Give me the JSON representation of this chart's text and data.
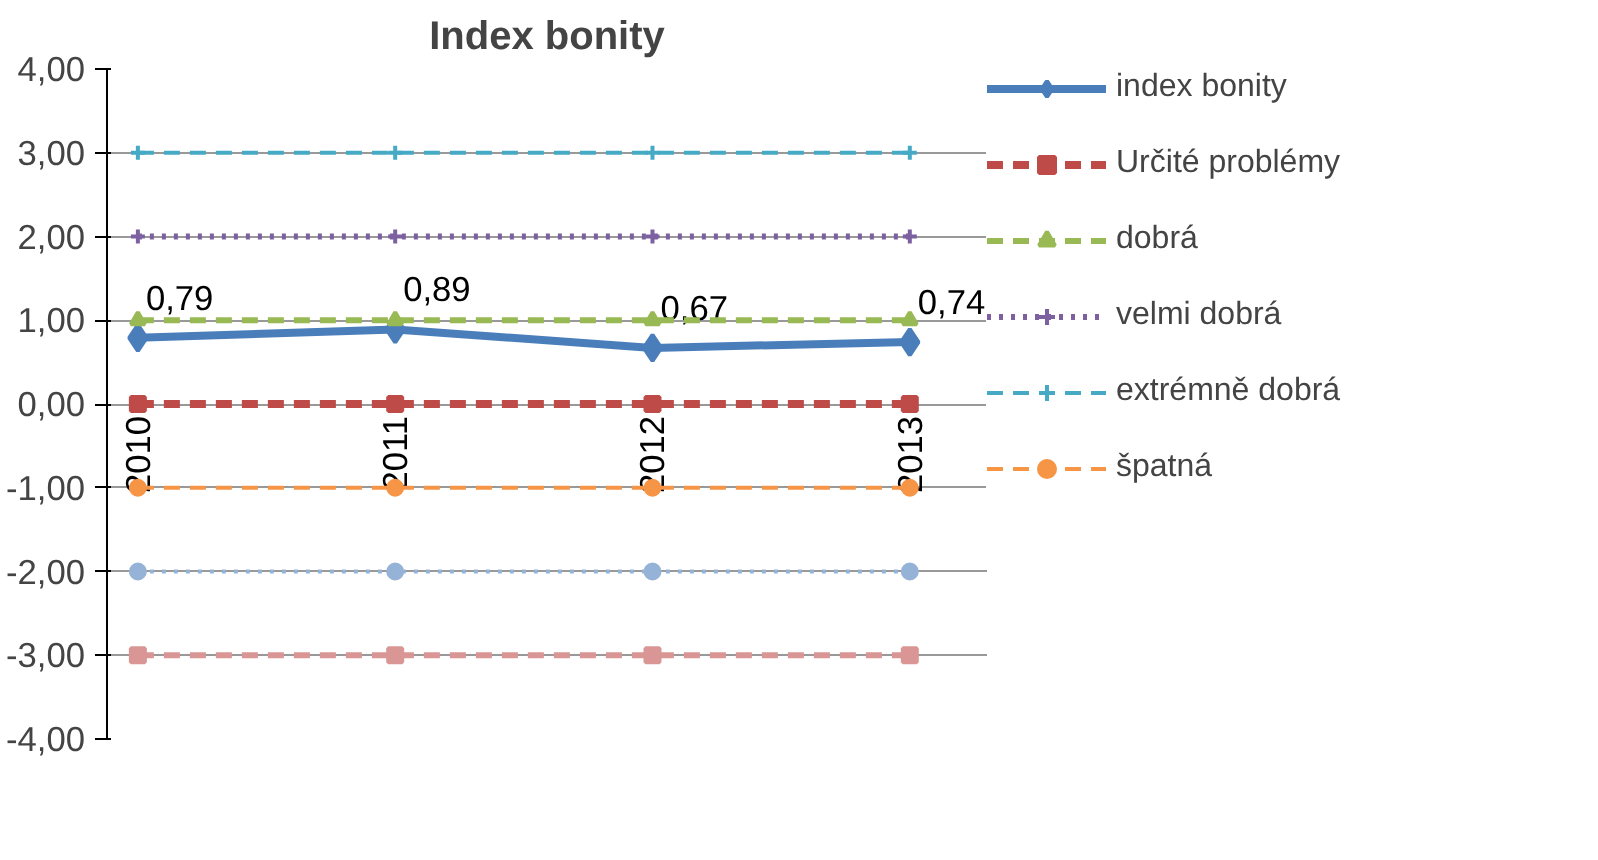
{
  "chart_data": {
    "type": "line",
    "title": "Index bonity",
    "categories": [
      "2010",
      "2011",
      "2012",
      "2013"
    ],
    "ylim": [
      -4,
      4
    ],
    "yticks": [
      {
        "value": 4,
        "label": "4,00"
      },
      {
        "value": 3,
        "label": "3,00"
      },
      {
        "value": 2,
        "label": "2,00"
      },
      {
        "value": 1,
        "label": "1,00"
      },
      {
        "value": 0,
        "label": "0,00"
      },
      {
        "value": -1,
        "label": "-1,00"
      },
      {
        "value": -2,
        "label": "-2,00"
      },
      {
        "value": -3,
        "label": "-3,00"
      },
      {
        "value": -4,
        "label": "-4,00"
      }
    ],
    "grid": "y",
    "legend": "right",
    "series": [
      {
        "name": "index bonity",
        "color": "#4a7ebb",
        "values": [
          0.79,
          0.89,
          0.67,
          0.74
        ],
        "marker": "diamond",
        "line_style": "solid",
        "value_labels": [
          "0,79",
          "0,89",
          "0,67",
          "0,74"
        ]
      },
      {
        "name": "Určité problémy",
        "color": "#be4b48",
        "values": [
          0,
          0,
          0,
          0
        ],
        "marker": "square",
        "line_style": "dashed"
      },
      {
        "name": "dobrá",
        "color": "#98b954",
        "values": [
          1,
          1,
          1,
          1
        ],
        "marker": "triangle",
        "line_style": "dashed"
      },
      {
        "name": "velmi dobrá",
        "color": "#7d60a0",
        "values": [
          2,
          2,
          2,
          2
        ],
        "marker": "cross",
        "line_style": "dotted"
      },
      {
        "name": "extrémně dobrá",
        "color": "#46aac5",
        "values": [
          3,
          3,
          3,
          3
        ],
        "marker": "cross",
        "line_style": "dashed"
      },
      {
        "name": "špatná",
        "color": "#f69546",
        "values": [
          -1,
          -1,
          -1,
          -1
        ],
        "marker": "circle",
        "line_style": "dashed"
      },
      {
        "color": "#95b3d7",
        "values": [
          -2,
          -2,
          -2,
          -2
        ],
        "marker": "circle",
        "line_style": "dotted"
      },
      {
        "color": "#d99694",
        "values": [
          -3,
          -3,
          -3,
          -3
        ],
        "marker": "square",
        "line_style": "dashed"
      }
    ]
  }
}
